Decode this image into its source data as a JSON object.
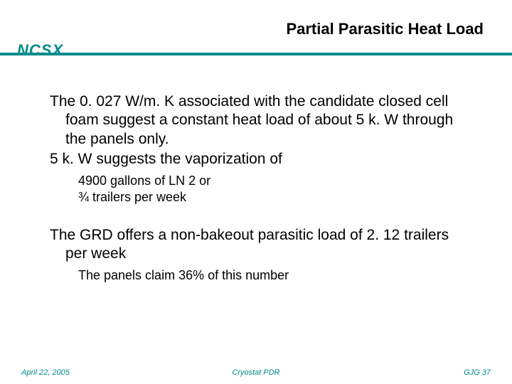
{
  "title": "Partial Parasitic Heat Load",
  "logo": "NCSX",
  "accent_color": "#008b8b",
  "body": {
    "p1": "The 0. 027 W/m. K associated with the candidate closed cell foam suggest a constant heat load of about 5 k. W through the panels only.",
    "p2": "5 k. W suggests the vaporization of",
    "sub1": "4900 gallons of LN 2 or",
    "sub2": "¾ trailers per week",
    "p3": "The GRD offers a non-bakeout parasitic load of 2. 12 trailers per week",
    "sub3": "The panels claim 36% of this number"
  },
  "footer": {
    "left": "April 22, 2005",
    "center": "Cryostat PDR",
    "right": "GJG  37"
  }
}
